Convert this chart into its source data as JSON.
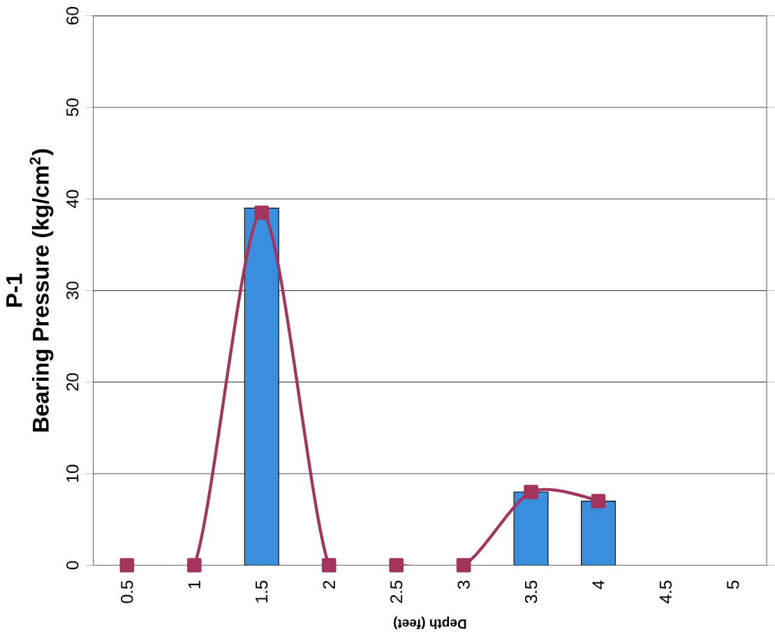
{
  "chart_data": {
    "type": "bar",
    "title": "P-1",
    "xlabel": "Depth (feet)",
    "ylabel": "Bearing Pressure (kg/cm$^{2}$)",
    "categories": [
      "0.5",
      "1",
      "1.5",
      "2",
      "2.5",
      "3",
      "3.5",
      "4",
      "4.5",
      "5"
    ],
    "series": [
      {
        "color": "#3a8ede",
        "values": [
          0,
          0,
          39,
          0,
          0,
          0,
          8,
          7,
          null,
          null
        ]
      },
      {
        "type": "line",
        "color": "#a3345e",
        "marker": "square",
        "values": [
          0,
          0,
          38.5,
          0,
          0,
          0,
          8,
          7,
          null,
          null
        ]
      }
    ],
    "ylim": [
      0,
      60
    ],
    "yticks": [
      0,
      10,
      20,
      30,
      40,
      50,
      60
    ],
    "grid": "y"
  }
}
